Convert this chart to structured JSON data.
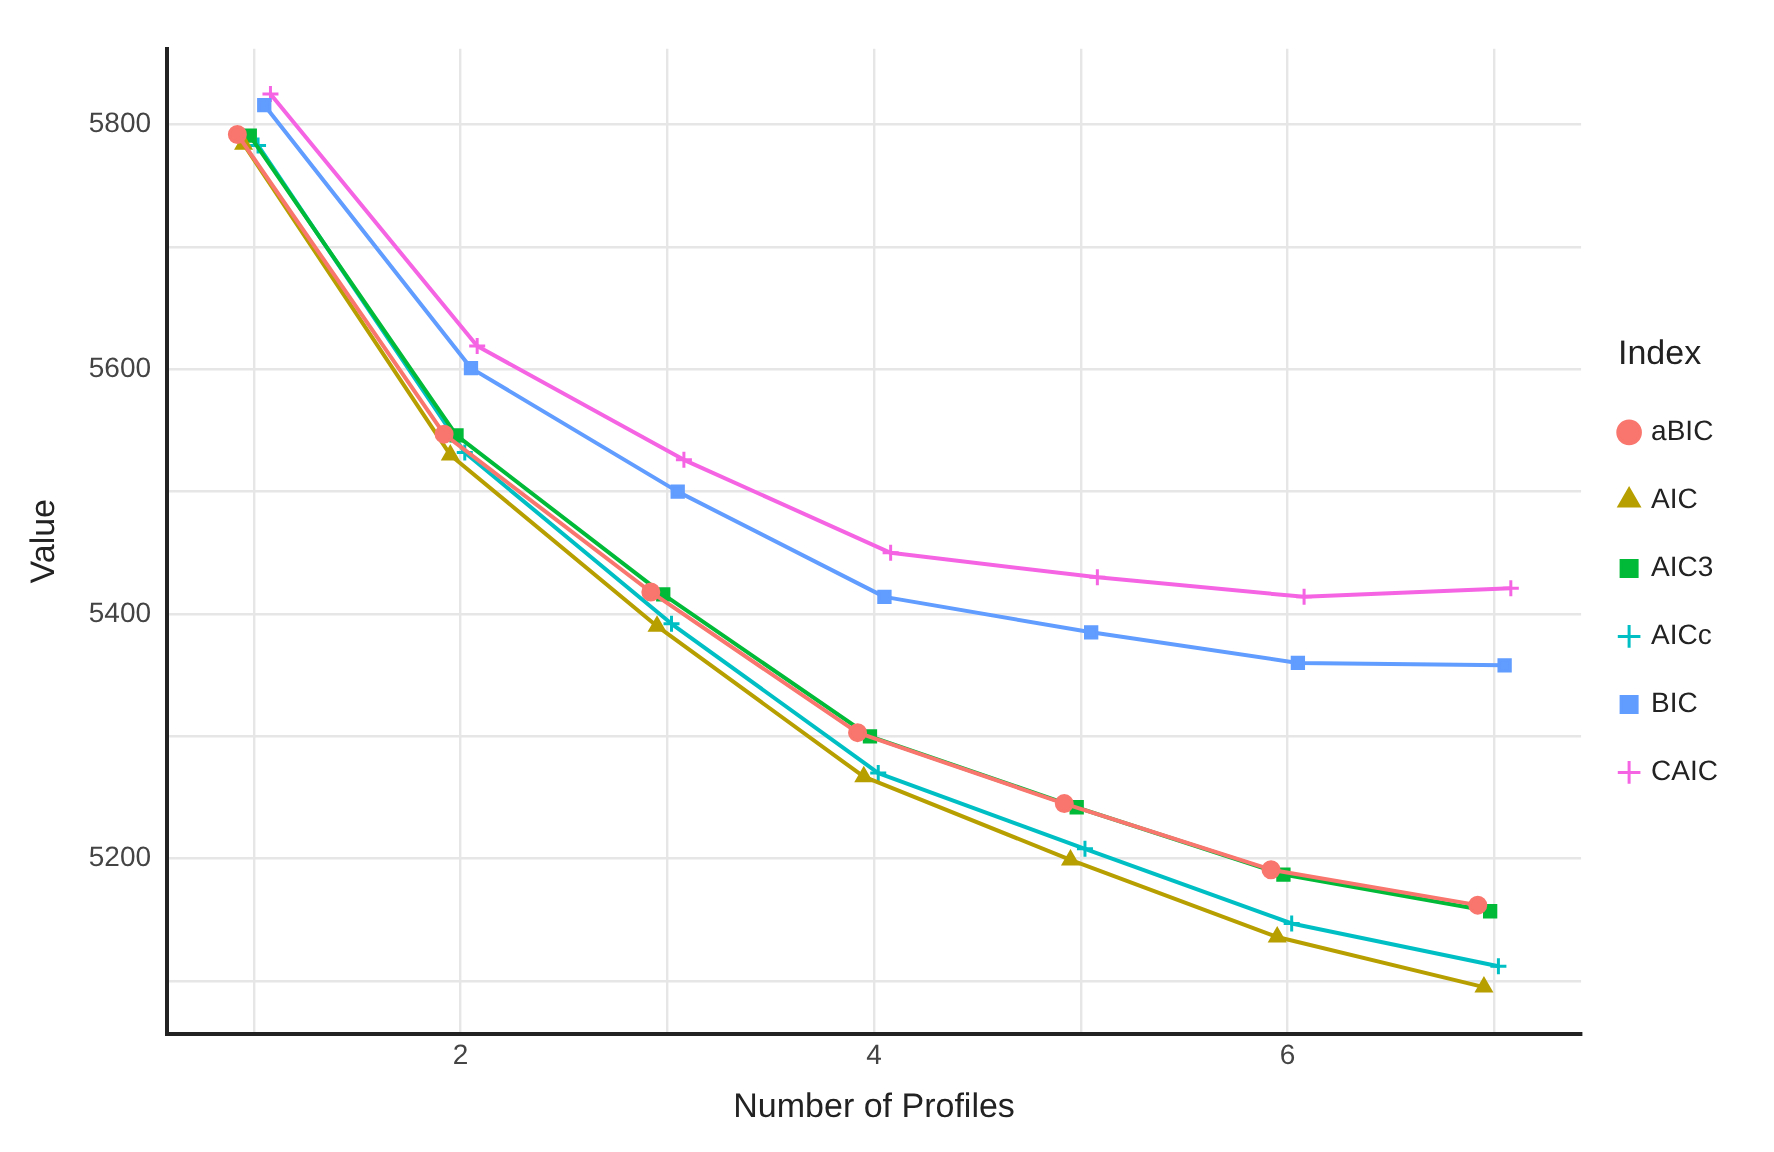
{
  "chart_data": {
    "type": "line",
    "xlabel": "Number of Profiles",
    "ylabel": "Value",
    "legend_title": "Index",
    "legend": "right",
    "grid": true,
    "xlim": [
      0.58,
      7.42
    ],
    "xticks": [
      {
        "value": 1,
        "label": null
      },
      2,
      {
        "value": 3,
        "label": null
      },
      4,
      {
        "value": 5,
        "label": null
      },
      6,
      {
        "value": 7,
        "label": null
      }
    ],
    "ylim": [
      5057,
      5862
    ],
    "yticks": [
      {
        "value": 5100,
        "label": null
      },
      5200,
      {
        "value": 5300,
        "label": null
      },
      5400,
      {
        "value": 5500,
        "label": null
      },
      5600,
      {
        "value": 5700,
        "label": null
      },
      5800
    ],
    "series": [
      {
        "name": "aBIC",
        "color": "#f8766d",
        "marker": "circle",
        "x": [
          0.92,
          1.92,
          2.92,
          3.92,
          4.92,
          5.92,
          6.92
        ],
        "values": [
          5792,
          5547,
          5418,
          5303,
          5245,
          5191,
          5162
        ]
      },
      {
        "name": "AIC",
        "color": "#b79f00",
        "marker": "triangle",
        "x": [
          0.95,
          1.95,
          2.95,
          3.95,
          4.95,
          5.95,
          6.95
        ],
        "values": [
          5784,
          5530,
          5390,
          5267,
          5199,
          5136,
          5095
        ]
      },
      {
        "name": "AIC3",
        "color": "#00ba38",
        "marker": "square",
        "x": [
          0.98,
          1.98,
          2.98,
          3.98,
          4.98,
          5.98,
          6.98
        ],
        "values": [
          5791,
          5546,
          5416,
          5300,
          5242,
          5187,
          5157
        ]
      },
      {
        "name": "AICc",
        "color": "#00bfc4",
        "marker": "cross",
        "x": [
          1.02,
          2.02,
          3.02,
          4.02,
          5.02,
          6.02,
          7.02
        ],
        "values": [
          5783,
          5532,
          5392,
          5270,
          5208,
          5147,
          5112
        ]
      },
      {
        "name": "BIC",
        "color": "#619cff",
        "marker": "square",
        "x": [
          1.05,
          2.05,
          3.05,
          4.05,
          5.05,
          6.05,
          7.05
        ],
        "values": [
          5816,
          5601,
          5500,
          5414,
          5385,
          5360,
          5358
        ]
      },
      {
        "name": "CAIC",
        "color": "#f564e3",
        "marker": "cross",
        "x": [
          1.08,
          2.08,
          3.08,
          4.08,
          5.08,
          6.08,
          7.08
        ],
        "values": [
          5825,
          5619,
          5526,
          5450,
          5430,
          5414,
          5421
        ]
      }
    ]
  }
}
